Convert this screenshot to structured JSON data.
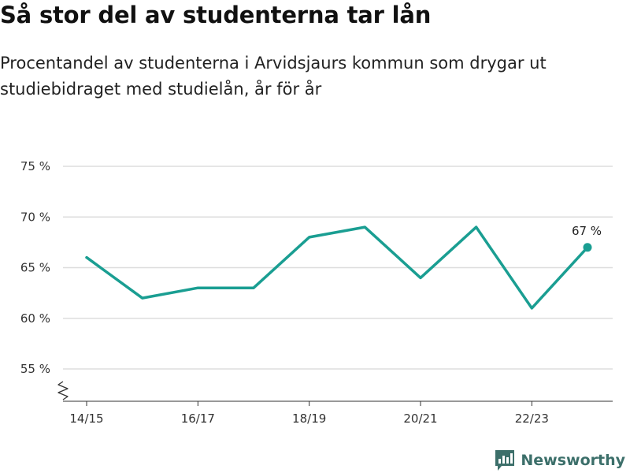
{
  "title": "Så stor del av studenterna tar lån",
  "subtitle": "Procentandel av studenterna i Arvidsjaurs kommun som drygar ut studiebidraget med studielån, år för år",
  "brand": {
    "name": "Newsworthy",
    "icon": "newsworthy-logo-icon"
  },
  "colors": {
    "line": "#1a9e92",
    "grid": "#dddddd",
    "axis": "#333333",
    "brand": "#3c6f6a"
  },
  "chart_data": {
    "type": "line",
    "title": "",
    "xlabel": "",
    "ylabel": "",
    "x": [
      "14/15",
      "15/16",
      "16/17",
      "17/18",
      "18/19",
      "19/20",
      "20/21",
      "21/22",
      "22/23",
      "23/24"
    ],
    "x_tick_labels": [
      "14/15",
      "16/17",
      "18/19",
      "20/21",
      "22/23"
    ],
    "series": [
      {
        "values": [
          66,
          62,
          63,
          63,
          68,
          69,
          64,
          69,
          61,
          67
        ]
      }
    ],
    "ylim": [
      55,
      75
    ],
    "y_ticks": [
      {
        "value": 55,
        "label": "55 %"
      },
      {
        "value": 60,
        "label": "60 %"
      },
      {
        "value": 65,
        "label": "65 %"
      },
      {
        "value": 70,
        "label": "70 %"
      },
      {
        "value": 75,
        "label": "75 %"
      }
    ],
    "end_label": "67 %",
    "y_axis_break": true,
    "grid": true,
    "legend": "none"
  }
}
